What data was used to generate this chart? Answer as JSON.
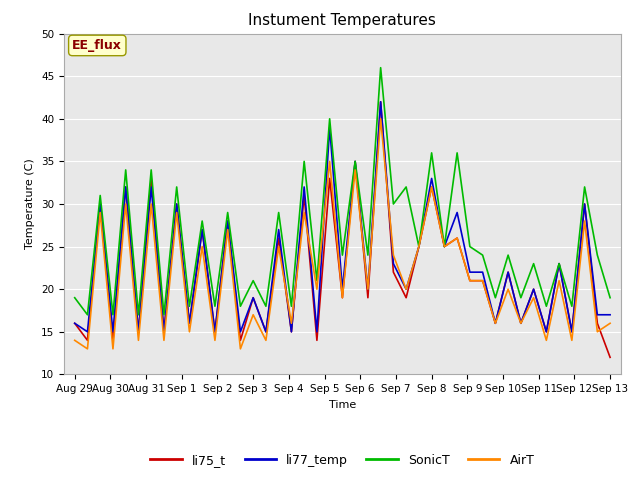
{
  "title": "Instument Temperatures",
  "xlabel": "Time",
  "ylabel": "Temperature (C)",
  "ylim": [
    10,
    50
  ],
  "yticks": [
    10,
    15,
    20,
    25,
    30,
    35,
    40,
    45,
    50
  ],
  "plot_bg_color": "#e8e8e8",
  "fig_bg_color": "#ffffff",
  "annotation_text": "EE_flux",
  "annotation_color": "#8b0000",
  "annotation_bg": "#ffffcc",
  "annotation_border": "#999900",
  "x_labels": [
    "Aug 29",
    "Aug 30",
    "Aug 31",
    "Sep 1",
    "Sep 2",
    "Sep 3",
    "Sep 4",
    "Sep 5",
    "Sep 6",
    "Sep 7",
    "Sep 8",
    "Sep 9",
    "Sep 10",
    "Sep 11",
    "Sep 12",
    "Sep 13"
  ],
  "series": {
    "li75_t": {
      "color": "#cc0000",
      "linewidth": 1.2,
      "values": [
        16,
        14,
        30,
        14,
        32,
        15,
        33,
        15,
        30,
        16,
        27,
        15,
        28,
        14,
        19,
        15,
        26,
        15,
        31,
        14,
        33,
        19,
        35,
        19,
        42,
        22,
        19,
        25,
        32,
        25,
        26,
        21,
        21,
        16,
        22,
        16,
        20,
        15,
        23,
        15,
        30,
        16,
        12
      ]
    },
    "li77_temp": {
      "color": "#0000cc",
      "linewidth": 1.2,
      "values": [
        16,
        15,
        30,
        15,
        32,
        15,
        32,
        15,
        30,
        16,
        27,
        15,
        28,
        15,
        19,
        15,
        27,
        15,
        32,
        15,
        39,
        20,
        35,
        20,
        42,
        23,
        20,
        25,
        33,
        25,
        29,
        22,
        22,
        16,
        22,
        16,
        20,
        15,
        23,
        15,
        30,
        17,
        17
      ]
    },
    "SonicT": {
      "color": "#00bb00",
      "linewidth": 1.2,
      "values": [
        19,
        17,
        31,
        17,
        34,
        17,
        34,
        17,
        32,
        18,
        28,
        18,
        29,
        18,
        21,
        18,
        29,
        18,
        35,
        21,
        40,
        24,
        35,
        24,
        46,
        30,
        32,
        25,
        36,
        25,
        36,
        25,
        24,
        19,
        24,
        19,
        23,
        18,
        23,
        18,
        32,
        24,
        19
      ]
    },
    "AirT": {
      "color": "#ff8800",
      "linewidth": 1.2,
      "values": [
        14,
        13,
        29,
        13,
        30,
        14,
        30,
        14,
        29,
        15,
        25,
        14,
        27,
        13,
        17,
        14,
        25,
        16,
        29,
        20,
        35,
        19,
        34,
        20,
        40,
        24,
        20,
        25,
        32,
        25,
        26,
        21,
        21,
        16,
        20,
        16,
        19,
        14,
        21,
        14,
        28,
        15,
        16
      ]
    }
  },
  "legend_entries": [
    "li75_t",
    "li77_temp",
    "SonicT",
    "AirT"
  ],
  "title_fontsize": 11,
  "axis_label_fontsize": 8,
  "tick_fontsize": 7.5
}
